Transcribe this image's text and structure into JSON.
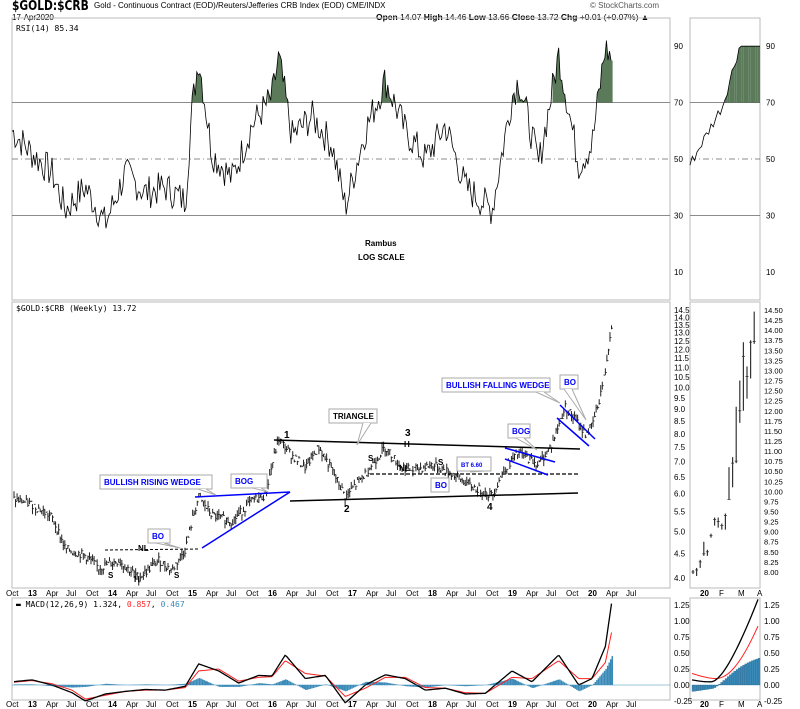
{
  "header": {
    "symbol": "$GOLD:$CRB",
    "description": "Gold - Continuous Contract (EOD)/Reuters/Jefferies CRB Index (EOD)  CME/INDX",
    "date": "17-Apr2020",
    "copyright": "© StockCharts.com",
    "open_label": "Open",
    "open": "14.07",
    "high_label": "High",
    "high": "14.46",
    "low_label": "Low",
    "low": "13.66",
    "close_label": "Close",
    "close": "13.72",
    "chg_label": "Chg",
    "chg": "+0.01 (+0.07%)"
  },
  "colors": {
    "rsi_fill": "#5a7a5a",
    "macd": "#000000",
    "signal": "#ff2020",
    "histogram": "#3a8ab8",
    "annotation": "#0000ff"
  },
  "chart_data": [
    {
      "type": "line",
      "name": "rsi",
      "legend": "RSI(14) 85.34",
      "ylim": [
        0,
        100
      ],
      "ticks": [
        10,
        30,
        50,
        70,
        90
      ],
      "levels": [
        30,
        50,
        70
      ],
      "points": [
        [
          "2012-10",
          60
        ],
        [
          "2013-01",
          52
        ],
        [
          "2013-04",
          45
        ],
        [
          "2013-06",
          32
        ],
        [
          "2013-09",
          40
        ],
        [
          "2013-12",
          27
        ],
        [
          "2014-03",
          45
        ],
        [
          "2014-06",
          38
        ],
        [
          "2014-09",
          40
        ],
        [
          "2014-12",
          35
        ],
        [
          "2015-01",
          68
        ],
        [
          "2015-02",
          86
        ],
        [
          "2015-04",
          52
        ],
        [
          "2015-07",
          43
        ],
        [
          "2015-10",
          62
        ],
        [
          "2016-01",
          72
        ],
        [
          "2016-02",
          86
        ],
        [
          "2016-04",
          58
        ],
        [
          "2016-07",
          65
        ],
        [
          "2016-10",
          55
        ],
        [
          "2016-12",
          33
        ],
        [
          "2017-03",
          60
        ],
        [
          "2017-06",
          78
        ],
        [
          "2017-09",
          60
        ],
        [
          "2017-12",
          50
        ],
        [
          "2018-03",
          62
        ],
        [
          "2018-06",
          40
        ],
        [
          "2018-10",
          32
        ],
        [
          "2019-01",
          72
        ],
        [
          "2019-02",
          78
        ],
        [
          "2019-05",
          48
        ],
        [
          "2019-08",
          87
        ],
        [
          "2019-11",
          48
        ],
        [
          "2020-01",
          55
        ],
        [
          "2020-03",
          90
        ],
        [
          "2020-04",
          85
        ]
      ],
      "labels": [
        "Rambus",
        "LOG SCALE"
      ]
    },
    {
      "type": "bar-ohlc",
      "name": "price",
      "legend": "$GOLD:$CRB (Weekly) 13.72",
      "scale": "log",
      "ylim": [
        4.0,
        14.5
      ],
      "ticks": [
        "4.0",
        "4.5",
        "5.0",
        "5.5",
        "6.0",
        "6.5",
        "7.0",
        "7.5",
        "8.0",
        "8.5",
        "9.0",
        "9.5",
        "10.0",
        "10.5",
        "11.0",
        "11.5",
        "12.0",
        "12.5",
        "13.0",
        "13.5",
        "14.0",
        "14.5"
      ],
      "points": [
        [
          "2012-10",
          5.85
        ],
        [
          "2013-01",
          5.7
        ],
        [
          "2013-04",
          5.35
        ],
        [
          "2013-06",
          4.6
        ],
        [
          "2013-09",
          4.45
        ],
        [
          "2013-11",
          4.2
        ],
        [
          "2014-02",
          4.35
        ],
        [
          "2014-05",
          4.0
        ],
        [
          "2014-08",
          4.35
        ],
        [
          "2014-10",
          4.15
        ],
        [
          "2014-12",
          4.6
        ],
        [
          "2015-02",
          5.9
        ],
        [
          "2015-04",
          5.4
        ],
        [
          "2015-07",
          5.25
        ],
        [
          "2015-10",
          5.8
        ],
        [
          "2015-12",
          5.95
        ],
        [
          "2016-02",
          7.8
        ],
        [
          "2016-04",
          7.2
        ],
        [
          "2016-06",
          6.8
        ],
        [
          "2016-08",
          7.5
        ],
        [
          "2016-10",
          6.7
        ],
        [
          "2016-12",
          5.9
        ],
        [
          "2017-03",
          6.6
        ],
        [
          "2017-06",
          7.5
        ],
        [
          "2017-08",
          6.9
        ],
        [
          "2017-10",
          6.7
        ],
        [
          "2018-01",
          6.9
        ],
        [
          "2018-04",
          6.6
        ],
        [
          "2018-07",
          6.2
        ],
        [
          "2018-10",
          5.95
        ],
        [
          "2018-12",
          6.8
        ],
        [
          "2019-02",
          7.3
        ],
        [
          "2019-05",
          6.9
        ],
        [
          "2019-07",
          7.6
        ],
        [
          "2019-09",
          9.1
        ],
        [
          "2019-12",
          8.0
        ],
        [
          "2020-01",
          8.3
        ],
        [
          "2020-02",
          9.3
        ],
        [
          "2020-03",
          10.8
        ],
        [
          "2020-04",
          13.72
        ]
      ],
      "annotations": [
        {
          "text": "BULLISH RISING WEDGE",
          "color": "blue",
          "boxed": true
        },
        {
          "text": "BOG",
          "color": "blue",
          "boxed": true
        },
        {
          "text": "BO",
          "color": "blue",
          "boxed": true
        },
        {
          "text": "TRIANGLE",
          "color": "black",
          "boxed": true
        },
        {
          "text": "BULLISH FALLING WEDGE",
          "color": "blue",
          "boxed": true
        },
        {
          "text": "BOG",
          "color": "blue",
          "boxed": true
        },
        {
          "text": "BO",
          "color": "blue",
          "boxed": true
        },
        {
          "text": "BT 6.60",
          "color": "blue",
          "boxed": true
        },
        {
          "text": "BO",
          "color": "blue",
          "boxed": true
        },
        {
          "text": "1"
        },
        {
          "text": "2"
        },
        {
          "text": "3"
        },
        {
          "text": "4"
        },
        {
          "text": "S"
        },
        {
          "text": "H"
        },
        {
          "text": "S"
        },
        {
          "text": "NL"
        },
        {
          "text": "S"
        },
        {
          "text": "H"
        },
        {
          "text": "S"
        },
        {
          "text": "NL"
        }
      ]
    },
    {
      "type": "line",
      "name": "macd",
      "legend_name": "MACD(12,26,9)",
      "legend_values": [
        "1.324",
        "0.857",
        "0.467"
      ],
      "ylim": [
        -0.35,
        1.35
      ],
      "ticks": [
        "1.25",
        "1.00",
        "0.75",
        "0.50",
        "0.25",
        "0.00",
        "-0.25"
      ],
      "macd": [
        [
          "2012-10",
          0.05
        ],
        [
          "2013-01",
          0.08
        ],
        [
          "2013-04",
          0.0
        ],
        [
          "2013-07",
          -0.12
        ],
        [
          "2013-09",
          -0.25
        ],
        [
          "2013-12",
          -0.14
        ],
        [
          "2014-03",
          -0.1
        ],
        [
          "2014-06",
          -0.07
        ],
        [
          "2014-09",
          -0.08
        ],
        [
          "2014-12",
          -0.02
        ],
        [
          "2015-02",
          0.33
        ],
        [
          "2015-05",
          0.22
        ],
        [
          "2015-08",
          0.03
        ],
        [
          "2015-11",
          0.15
        ],
        [
          "2016-01",
          0.14
        ],
        [
          "2016-03",
          0.47
        ],
        [
          "2016-06",
          0.1
        ],
        [
          "2016-09",
          0.15
        ],
        [
          "2016-12",
          -0.28
        ],
        [
          "2017-03",
          0.0
        ],
        [
          "2017-06",
          0.16
        ],
        [
          "2017-09",
          0.1
        ],
        [
          "2017-12",
          -0.08
        ],
        [
          "2018-03",
          -0.05
        ],
        [
          "2018-06",
          -0.14
        ],
        [
          "2018-09",
          -0.13
        ],
        [
          "2019-01",
          0.22
        ],
        [
          "2019-04",
          0.05
        ],
        [
          "2019-08",
          0.47
        ],
        [
          "2019-11",
          0.0
        ],
        [
          "2020-01",
          0.1
        ],
        [
          "2020-03",
          0.6
        ],
        [
          "2020-04",
          1.324
        ]
      ],
      "signal": [
        [
          "2012-10",
          0.04
        ],
        [
          "2013-01",
          0.07
        ],
        [
          "2013-04",
          0.02
        ],
        [
          "2013-07",
          -0.08
        ],
        [
          "2013-09",
          -0.22
        ],
        [
          "2013-12",
          -0.16
        ],
        [
          "2014-03",
          -0.1
        ],
        [
          "2014-06",
          -0.08
        ],
        [
          "2014-09",
          -0.08
        ],
        [
          "2014-12",
          -0.04
        ],
        [
          "2015-02",
          0.22
        ],
        [
          "2015-05",
          0.25
        ],
        [
          "2015-08",
          0.06
        ],
        [
          "2015-11",
          0.12
        ],
        [
          "2016-01",
          0.13
        ],
        [
          "2016-03",
          0.38
        ],
        [
          "2016-06",
          0.18
        ],
        [
          "2016-09",
          0.14
        ],
        [
          "2016-12",
          -0.18
        ],
        [
          "2017-03",
          -0.05
        ],
        [
          "2017-06",
          0.12
        ],
        [
          "2017-09",
          0.12
        ],
        [
          "2017-12",
          -0.04
        ],
        [
          "2018-03",
          -0.05
        ],
        [
          "2018-06",
          -0.12
        ],
        [
          "2018-09",
          -0.13
        ],
        [
          "2019-01",
          0.12
        ],
        [
          "2019-04",
          0.1
        ],
        [
          "2019-08",
          0.38
        ],
        [
          "2019-11",
          0.1
        ],
        [
          "2020-01",
          0.1
        ],
        [
          "2020-03",
          0.35
        ],
        [
          "2020-04",
          0.857
        ]
      ]
    },
    {
      "type": "bar-ohlc",
      "name": "price-daily",
      "ylim": [
        7.85,
        14.5
      ],
      "ticks": [
        "8.00",
        "8.25",
        "8.50",
        "8.75",
        "9.00",
        "9.25",
        "9.50",
        "9.75",
        "10.00",
        "10.25",
        "10.50",
        "10.75",
        "11.00",
        "11.25",
        "11.50",
        "11.75",
        "12.00",
        "12.25",
        "12.50",
        "12.75",
        "13.00",
        "13.25",
        "13.50",
        "13.75",
        "14.00",
        "14.25",
        "14.50"
      ],
      "bars": [
        [
          8.05,
          7.95,
          8.0
        ],
        [
          8.1,
          7.9,
          8.05
        ],
        [
          8.3,
          8.1,
          8.25
        ],
        [
          8.75,
          8.4,
          8.45
        ],
        [
          8.55,
          8.4,
          8.5
        ],
        [
          8.95,
          8.85,
          8.9
        ],
        [
          9.35,
          9.15,
          9.3
        ],
        [
          9.35,
          9.1,
          9.25
        ],
        [
          9.2,
          9.05,
          9.15
        ],
        [
          9.45,
          9.05,
          9.4
        ],
        [
          10.6,
          9.8,
          9.8
        ],
        [
          10.85,
          10.1,
          10.7
        ],
        [
          12.1,
          10.7,
          10.75
        ],
        [
          12.75,
          11.7,
          12.0
        ],
        [
          13.7,
          12.0,
          13.35
        ],
        [
          13.1,
          12.3,
          12.85
        ],
        [
          13.75,
          12.8,
          13.7
        ],
        [
          14.46,
          13.66,
          13.72
        ]
      ],
      "x_ticks": [
        "20",
        "F",
        "M",
        "A"
      ]
    }
  ],
  "time_axis": [
    "Oct",
    "13",
    "Apr",
    "Jul",
    "Oct",
    "14",
    "Apr",
    "Jul",
    "Oct",
    "15",
    "Apr",
    "Jul",
    "Oct",
    "16",
    "Apr",
    "Jul",
    "Oct",
    "17",
    "Apr",
    "Jul",
    "Oct",
    "18",
    "Apr",
    "Jul",
    "Oct",
    "19",
    "Apr",
    "Jul",
    "Oct",
    "20",
    "Apr",
    "Jul"
  ]
}
